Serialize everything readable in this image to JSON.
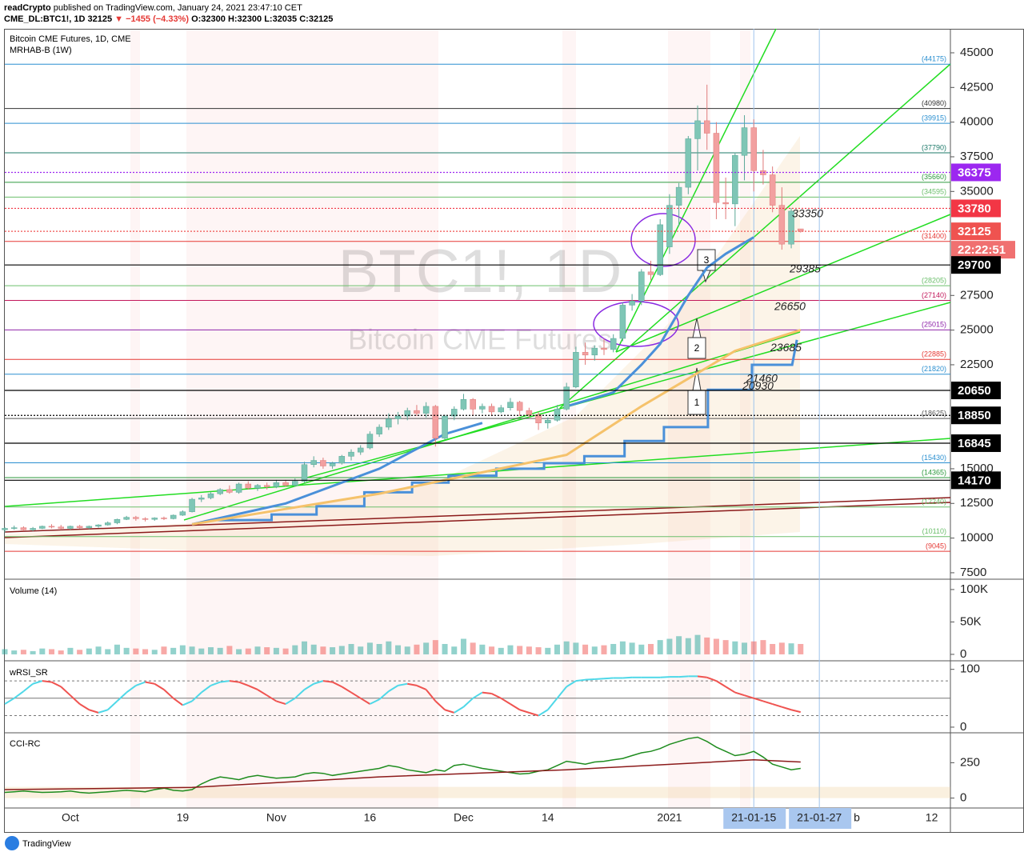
{
  "header": {
    "author": "readCrypto",
    "published": "published on TradingView.com, January 24, 2021 23:47:10 CET",
    "symbol": "CME_DL:BTC1!, 1D",
    "price": "32125",
    "change": "▼ −1455 (−4.33%)",
    "ohlc": "O:32300 H:32300 L:32035 C:32125"
  },
  "footer": "TradingView",
  "chart_data": {
    "type": "candlestick",
    "title": "Bitcoin CME Futures, 1D, CME",
    "subtitle": "MRHAB-B (1W)",
    "watermark": "BTC1!, 1D",
    "watermark_sub": "Bitcoin CME Futures",
    "up_color": "#7fc6b6",
    "down_color": "#f2a0a0",
    "xlim": [
      0,
      101
    ],
    "ylim": [
      7150,
      46730
    ],
    "yticks": [
      7500,
      10000,
      12500,
      15000,
      22500,
      25000,
      27500,
      35000,
      37500,
      40000,
      42500,
      45000
    ],
    "grid": false,
    "xticks": [
      {
        "value": 7,
        "label": "Oct"
      },
      {
        "value": 19,
        "label": "19"
      },
      {
        "value": 29,
        "label": "Nov"
      },
      {
        "value": 39,
        "label": "16"
      },
      {
        "value": 49,
        "label": "Dec"
      },
      {
        "value": 58,
        "label": "14"
      },
      {
        "value": 71,
        "label": "2021"
      },
      {
        "value": 91,
        "label": "b"
      },
      {
        "value": 99,
        "label": "12"
      }
    ],
    "x_markers": [
      {
        "value": 80,
        "label": "21-01-15"
      },
      {
        "value": 87,
        "label": "21-01-27"
      }
    ],
    "candles": [
      [
        10600,
        10800,
        10400,
        10700
      ],
      [
        10700,
        10900,
        10600,
        10750
      ],
      [
        10750,
        10850,
        10500,
        10600
      ],
      [
        10600,
        10800,
        10500,
        10700
      ],
      [
        10700,
        10900,
        10650,
        10850
      ],
      [
        10850,
        11000,
        10700,
        10800
      ],
      [
        10800,
        10950,
        10600,
        10700
      ],
      [
        10700,
        10900,
        10600,
        10850
      ],
      [
        10850,
        10950,
        10700,
        10750
      ],
      [
        10750,
        10900,
        10650,
        10850
      ],
      [
        10850,
        11000,
        10750,
        10950
      ],
      [
        10950,
        11200,
        10900,
        11100
      ],
      [
        11100,
        11400,
        11000,
        11350
      ],
      [
        11350,
        11600,
        11300,
        11500
      ],
      [
        11500,
        11600,
        11250,
        11400
      ],
      [
        11400,
        11500,
        11200,
        11350
      ],
      [
        11350,
        11500,
        11250,
        11450
      ],
      [
        11450,
        11550,
        11300,
        11400
      ],
      [
        11400,
        11700,
        11350,
        11650
      ],
      [
        11650,
        12000,
        11600,
        11900
      ],
      [
        11900,
        12900,
        11850,
        12800
      ],
      [
        12800,
        13100,
        12600,
        12900
      ],
      [
        12900,
        13300,
        12800,
        13200
      ],
      [
        13200,
        13600,
        13100,
        13500
      ],
      [
        13500,
        13800,
        13200,
        13300
      ],
      [
        13300,
        14000,
        13200,
        13900
      ],
      [
        13900,
        14100,
        13500,
        13600
      ],
      [
        13600,
        13900,
        13400,
        13800
      ],
      [
        13800,
        14000,
        13500,
        13700
      ],
      [
        13700,
        14200,
        13600,
        14000
      ],
      [
        14000,
        14200,
        13700,
        13800
      ],
      [
        13800,
        14300,
        13700,
        14100
      ],
      [
        14100,
        15500,
        14000,
        15300
      ],
      [
        15300,
        15900,
        15100,
        15600
      ],
      [
        15600,
        15800,
        15000,
        15200
      ],
      [
        15200,
        15500,
        15000,
        15400
      ],
      [
        15400,
        16000,
        15300,
        15900
      ],
      [
        15900,
        16400,
        15600,
        16200
      ],
      [
        16200,
        16700,
        16000,
        16500
      ],
      [
        16500,
        17700,
        16400,
        17500
      ],
      [
        17500,
        18200,
        17300,
        18000
      ],
      [
        18000,
        19000,
        17800,
        18600
      ],
      [
        18600,
        19100,
        18200,
        18800
      ],
      [
        18800,
        19400,
        18500,
        19200
      ],
      [
        19200,
        19600,
        18800,
        19000
      ],
      [
        19000,
        19800,
        18700,
        19500
      ],
      [
        19500,
        19600,
        16600,
        17200
      ],
      [
        17200,
        18900,
        17100,
        18800
      ],
      [
        18800,
        19500,
        18500,
        19300
      ],
      [
        19300,
        20400,
        19200,
        20000
      ],
      [
        20000,
        20100,
        18800,
        19300
      ],
      [
        19300,
        19700,
        19000,
        19500
      ],
      [
        19500,
        19700,
        18800,
        19100
      ],
      [
        19100,
        19600,
        19000,
        19400
      ],
      [
        19400,
        20100,
        19200,
        19800
      ],
      [
        19800,
        19900,
        18800,
        19200
      ],
      [
        19200,
        19400,
        18700,
        18900
      ],
      [
        18900,
        19100,
        17800,
        18300
      ],
      [
        18300,
        18700,
        17900,
        18500
      ],
      [
        18500,
        19600,
        18400,
        19300
      ],
      [
        19300,
        21200,
        19200,
        20900
      ],
      [
        20900,
        23800,
        20800,
        23400
      ],
      [
        23400,
        24100,
        22500,
        23200
      ],
      [
        23200,
        23900,
        22800,
        23700
      ],
      [
        23700,
        24400,
        23200,
        23600
      ],
      [
        23600,
        24700,
        23400,
        24400
      ],
      [
        24400,
        27000,
        24200,
        26800
      ],
      [
        26800,
        27600,
        26400,
        27100
      ],
      [
        27100,
        29400,
        26800,
        29200
      ],
      [
        29200,
        30000,
        28600,
        29000
      ],
      [
        29000,
        33000,
        28900,
        32600
      ],
      [
        31000,
        34800,
        30500,
        34000
      ],
      [
        34000,
        35600,
        32500,
        35300
      ],
      [
        35300,
        39000,
        34800,
        38800
      ],
      [
        38800,
        41200,
        36500,
        40100
      ],
      [
        40100,
        42700,
        38000,
        39200
      ],
      [
        39200,
        40000,
        33000,
        34200
      ],
      [
        34200,
        36000,
        33000,
        34100
      ],
      [
        34100,
        37800,
        32500,
        37600
      ],
      [
        37600,
        40500,
        35800,
        39600
      ],
      [
        39600,
        40200,
        35000,
        36500
      ],
      [
        36500,
        38000,
        35500,
        36200
      ],
      [
        36200,
        36800,
        33500,
        34000
      ],
      [
        34000,
        35300,
        30800,
        31200
      ],
      [
        31200,
        33800,
        30900,
        33580
      ],
      [
        32300,
        32300,
        32035,
        32125
      ]
    ],
    "series": [
      {
        "name": "MRHAB-B (1W)",
        "color": "#4a90d9",
        "x": [
          22.7,
          28.5,
          28.5,
          33.3,
          33.3,
          38.4,
          38.4,
          43.5,
          43.5,
          47.4,
          47.4,
          52.5,
          52.5,
          57.6,
          57.6,
          61.9,
          61.9,
          66.2,
          66.2,
          70.4,
          70.4,
          75.1,
          75.1,
          79.8,
          79.8,
          84.1,
          84.6
        ],
        "values": [
          11300,
          11300,
          11700,
          11700,
          12300,
          12300,
          13300,
          13300,
          14000,
          14000,
          14500,
          14500,
          15000,
          15000,
          15400,
          15400,
          15900,
          15900,
          17000,
          17000,
          18000,
          18000,
          20700,
          20700,
          22500,
          22500,
          24300
        ]
      },
      {
        "color": "#4a90d9",
        "x": [
          20,
          30,
          40,
          47,
          51,
          null,
          60,
          65,
          68,
          70,
          73,
          75,
          77,
          79,
          80
        ],
        "values": [
          11000,
          12500,
          15000,
          17500,
          18300,
          null,
          19500,
          20500,
          22500,
          24000,
          27500,
          29500,
          30500,
          31300,
          31700
        ]
      },
      {
        "color": "#f5c26b",
        "x": [
          20,
          40,
          60,
          68,
          73,
          78,
          85
        ],
        "values": [
          11000,
          13200,
          16000,
          19500,
          21500,
          23500,
          25000
        ]
      }
    ],
    "levels": [
      {
        "value": 44175,
        "label": "(44175)",
        "color": "#2a8fd0"
      },
      {
        "value": 40980,
        "label": "(40980)",
        "color": "#333333"
      },
      {
        "value": 39915,
        "label": "(39915)",
        "color": "#2a8fd0"
      },
      {
        "value": 37790,
        "label": "(37790)",
        "color": "#1e7a6a"
      },
      {
        "value": 35660,
        "label": "(35660)",
        "color": "#2e9a3e"
      },
      {
        "value": 34595,
        "label": "(34595)",
        "color": "#6cbf6c"
      },
      {
        "value": 31400,
        "label": "(31400)",
        "color": "#e53935"
      },
      {
        "value": 28205,
        "label": "(28205)",
        "color": "#6cbf6c"
      },
      {
        "value": 27140,
        "label": "(27140)",
        "color": "#c2185b"
      },
      {
        "value": 25015,
        "label": "(25015)",
        "color": "#8e24aa"
      },
      {
        "value": 22885,
        "label": "(22885)",
        "color": "#e53935"
      },
      {
        "value": 21820,
        "label": "(21820)",
        "color": "#2a8fd0"
      },
      {
        "value": 18625,
        "label": "(18625)",
        "color": "#555555"
      },
      {
        "value": 15430,
        "label": "(15430)",
        "color": "#2a8fd0"
      },
      {
        "value": 14365,
        "label": "(14365)",
        "color": "#2e9a3e"
      },
      {
        "value": 12240,
        "label": "(12240)",
        "color": "#6cbf6c"
      },
      {
        "value": 10110,
        "label": "(10110)",
        "color": "#6cbf6c"
      },
      {
        "value": 9045,
        "label": "(9045)",
        "color": "#e53935"
      }
    ],
    "badges": [
      {
        "value": 36375,
        "color": "#9c27f0",
        "dotted": true
      },
      {
        "value": 33780,
        "color": "#f23645",
        "dotted": true
      },
      {
        "value": 32125,
        "color": "#ef5350",
        "dotted": true
      },
      {
        "value": 29700,
        "color": "#000000",
        "dotted": false
      },
      {
        "value": 20650,
        "color": "#000000",
        "dotted": false
      },
      {
        "value": 18850,
        "color": "#000000",
        "dotted": true
      },
      {
        "value": 16845,
        "color": "#000000",
        "dotted": false
      },
      {
        "value": 14170,
        "color": "#000000",
        "dotted": false
      }
    ],
    "countdown": "22:22:51",
    "annotations": [
      33350,
      29385,
      26650,
      23685,
      21460,
      20930
    ],
    "callouts": [
      "1",
      "2",
      "3"
    ],
    "volume": {
      "label": "Volume (14)",
      "ylim": [
        -5000,
        111000
      ],
      "yticks": [
        0,
        {
          "value": 50000,
          "label": "50K"
        },
        {
          "value": 100000,
          "label": "100K"
        }
      ],
      "values": [
        8000,
        6000,
        7000,
        5000,
        9000,
        8000,
        6000,
        10000,
        7000,
        9000,
        12000,
        8000,
        15000,
        10000,
        9000,
        8000,
        7000,
        12000,
        10000,
        14000,
        12000,
        9000,
        11000,
        10000,
        13000,
        8000,
        9000,
        12000,
        11000,
        10000,
        9000,
        14000,
        20000,
        15000,
        12000,
        11000,
        13000,
        16000,
        12000,
        18000,
        16000,
        20000,
        14000,
        12000,
        15000,
        18000,
        22000,
        16000,
        12000,
        24000,
        18000,
        15000,
        12000,
        10000,
        14000,
        13000,
        12000,
        11000,
        10000,
        15000,
        20000,
        18000,
        15000,
        12000,
        14000,
        16000,
        20000,
        18000,
        15000,
        16000,
        22000,
        24000,
        28000,
        25000,
        30000,
        26000,
        24000,
        22000,
        20000,
        18000,
        20000,
        22000,
        16000,
        18000,
        17000,
        16000
      ]
    },
    "rsi": {
      "label": "wRSI_SR",
      "ylim": [
        -7,
        112
      ],
      "yticks": [
        0,
        100
      ],
      "guides": [
        20,
        50,
        80
      ],
      "values": [
        40,
        50,
        62,
        75,
        80,
        78,
        70,
        55,
        40,
        30,
        25,
        30,
        45,
        60,
        72,
        78,
        75,
        65,
        50,
        38,
        45,
        60,
        72,
        78,
        80,
        78,
        72,
        65,
        55,
        45,
        40,
        50,
        65,
        75,
        80,
        78,
        70,
        60,
        50,
        40,
        48,
        62,
        72,
        75,
        72,
        65,
        45,
        30,
        25,
        35,
        50,
        60,
        58,
        50,
        40,
        30,
        25,
        20,
        30,
        50,
        70,
        80,
        82,
        83,
        84,
        85,
        85,
        86,
        86,
        86,
        86,
        87,
        87,
        88,
        88,
        86,
        80,
        70,
        60,
        55,
        50,
        45,
        40,
        35,
        30,
        26
      ]
    },
    "cci": {
      "label": "CCI-RC",
      "ylim": [
        -70,
        450
      ],
      "yticks": [
        0,
        250
      ],
      "values": [
        40,
        45,
        50,
        45,
        40,
        42,
        45,
        50,
        40,
        35,
        40,
        45,
        50,
        55,
        50,
        45,
        60,
        70,
        55,
        50,
        60,
        100,
        130,
        150,
        140,
        130,
        150,
        160,
        150,
        140,
        145,
        150,
        170,
        180,
        175,
        160,
        170,
        180,
        190,
        200,
        210,
        230,
        220,
        200,
        190,
        180,
        200,
        190,
        230,
        240,
        225,
        210,
        200,
        190,
        180,
        170,
        175,
        190,
        200,
        230,
        260,
        250,
        240,
        255,
        260,
        270,
        280,
        300,
        320,
        330,
        350,
        380,
        400,
        420,
        430,
        400,
        360,
        330,
        300,
        310,
        330,
        290,
        240,
        220,
        200,
        210
      ],
      "signal_x": [
        0,
        20,
        40,
        60,
        80,
        85
      ],
      "signal": [
        60,
        75,
        150,
        200,
        270,
        255
      ]
    }
  }
}
